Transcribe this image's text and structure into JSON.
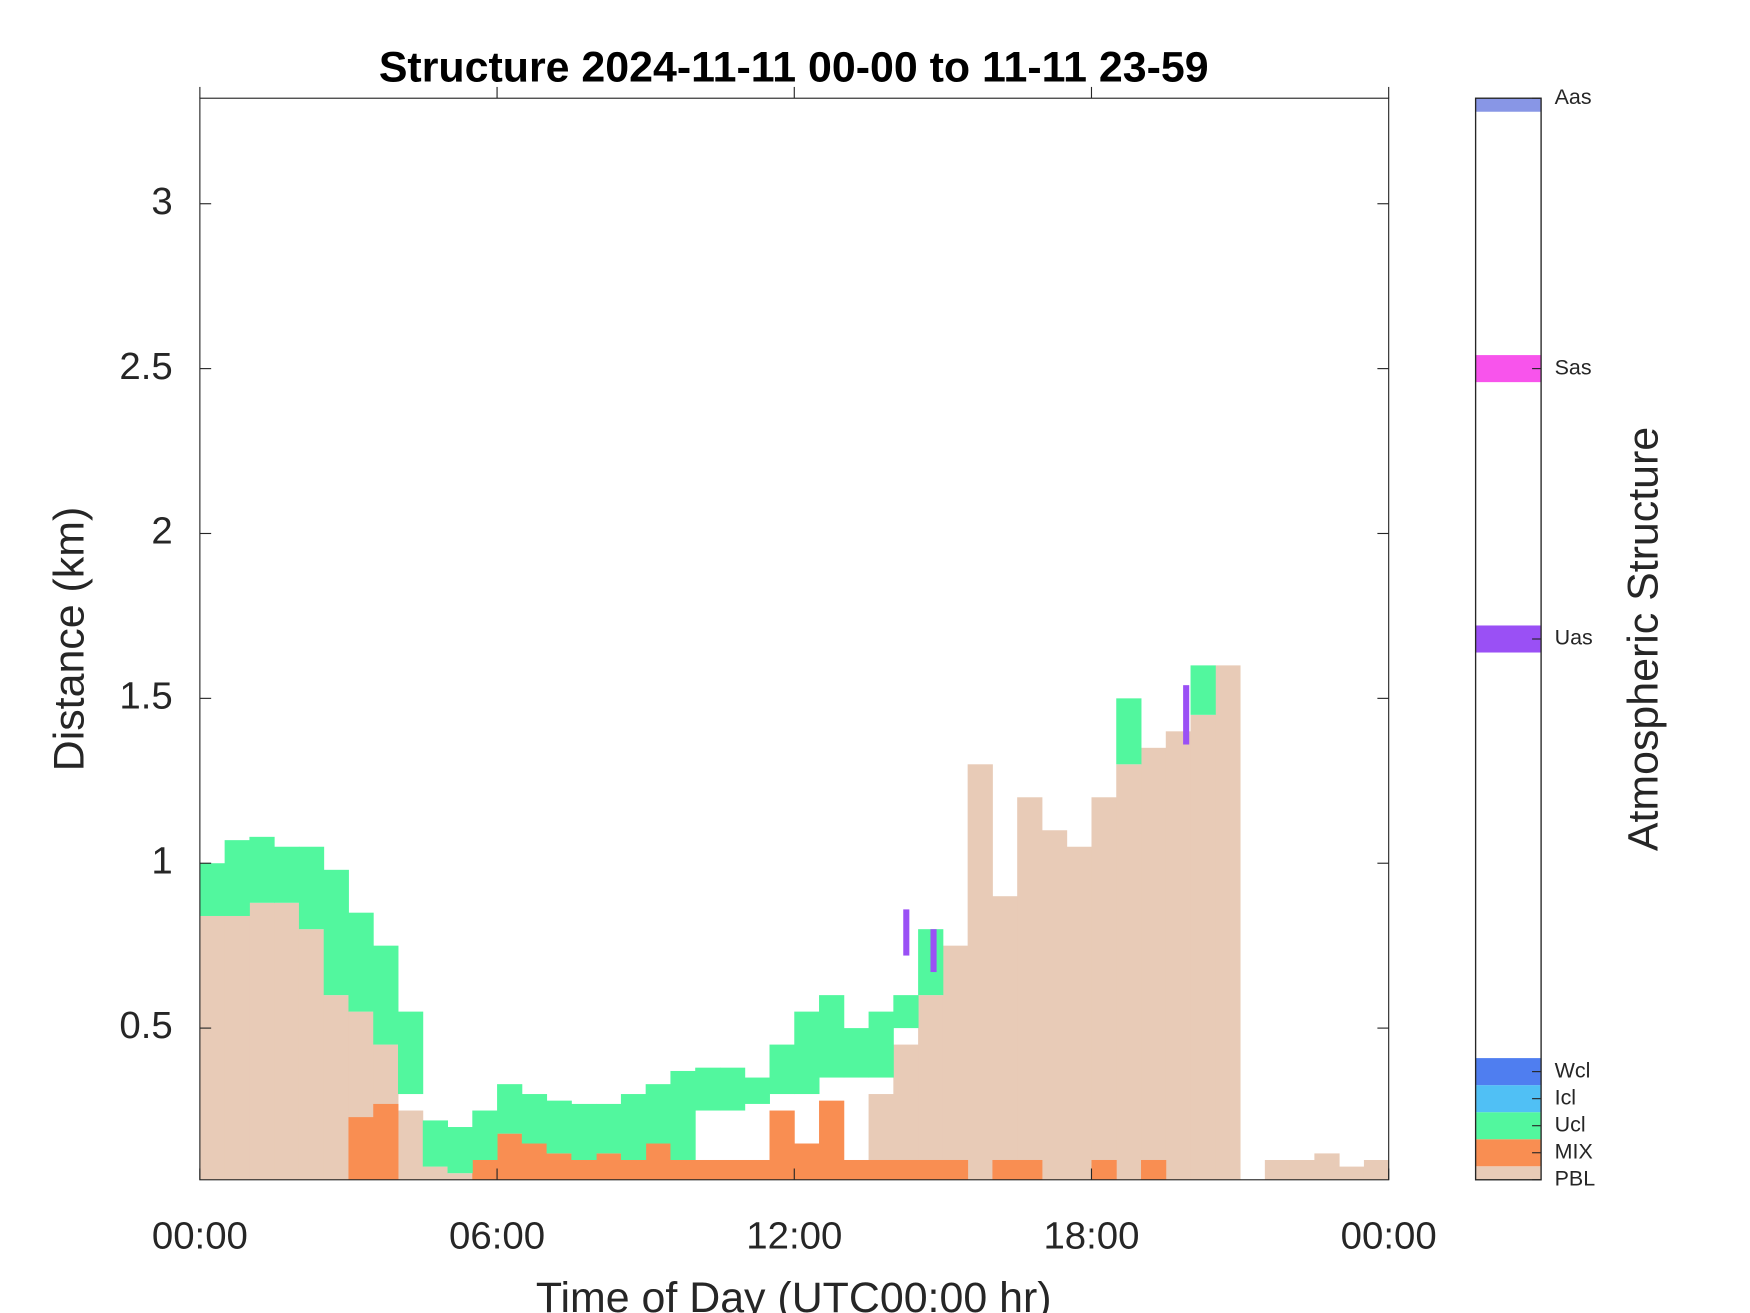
{
  "chart_data": {
    "type": "structure",
    "title": "Structure 2024-11-11 00-00 to 11-11 23-59",
    "xlabel": "Time of Day (UTC00:00 hr)",
    "ylabel": "Distance (km)",
    "xlim": [
      0,
      24
    ],
    "xticks": [
      {
        "value": 0,
        "label": "00:00"
      },
      {
        "value": 6,
        "label": "06:00"
      },
      {
        "value": 12,
        "label": "12:00"
      },
      {
        "value": 18,
        "label": "18:00"
      },
      {
        "value": 24,
        "label": "00:00"
      }
    ],
    "ylim": [
      0.04,
      3.32
    ],
    "yticks": [
      0.5,
      1,
      1.5,
      2,
      2.5,
      3
    ],
    "x": [
      0,
      0.5,
      1,
      1.5,
      2,
      2.5,
      3,
      3.5,
      4,
      4.5,
      5,
      5.5,
      6,
      6.5,
      7,
      7.5,
      8,
      8.5,
      9,
      9.5,
      10,
      10.5,
      11,
      11.5,
      12,
      12.5,
      13,
      13.5,
      14,
      14.5,
      15,
      15.5,
      16,
      16.5,
      17,
      17.5,
      18,
      18.5,
      19,
      19.5,
      20,
      20.5,
      21,
      21.5,
      22,
      22.5,
      23,
      23.5
    ],
    "colorbar": {
      "label": "Atmospheric Structure",
      "clim": [
        0,
        40
      ]
    },
    "series": [
      {
        "name": "PBL",
        "color": "#e8cbb7",
        "level": 0,
        "values": [
          0.84,
          0.84,
          0.88,
          0.88,
          0.8,
          0.6,
          0.55,
          0.45,
          0.25,
          0.08,
          0.06,
          0.07,
          0.08,
          0.08,
          0.08,
          0.08,
          0.08,
          0.08,
          0.08,
          0.08,
          0.08,
          0.08,
          0.08,
          0.08,
          0.08,
          0.08,
          0.08,
          0.3,
          0.45,
          0.6,
          0.75,
          1.3,
          0.9,
          1.2,
          1.1,
          1.05,
          1.2,
          1.3,
          1.35,
          1.4,
          1.45,
          1.6,
          null,
          0.1,
          0.1,
          0.12,
          0.08,
          0.1
        ]
      },
      {
        "name": "MIX",
        "color": "#f98e52",
        "level": 1,
        "values": [
          null,
          null,
          null,
          null,
          null,
          null,
          0.23,
          0.27,
          null,
          null,
          null,
          0.1,
          0.18,
          0.15,
          0.12,
          0.1,
          0.12,
          0.1,
          0.15,
          0.1,
          0.1,
          0.1,
          0.1,
          0.25,
          0.15,
          0.28,
          0.1,
          0.1,
          0.1,
          0.1,
          0.1,
          null,
          0.1,
          0.1,
          null,
          null,
          0.1,
          null,
          0.1,
          null,
          null,
          null,
          null,
          null,
          null,
          null,
          null,
          null
        ]
      },
      {
        "name": "Ucl",
        "color": "#52f79e",
        "level": 2,
        "base": [
          0.84,
          0.84,
          0.88,
          0.88,
          0.8,
          0.6,
          0.55,
          0.45,
          0.3,
          0.08,
          0.06,
          0.1,
          0.18,
          0.15,
          0.12,
          0.1,
          0.12,
          0.1,
          0.15,
          0.1,
          0.25,
          0.25,
          0.27,
          0.3,
          0.3,
          0.35,
          0.35,
          0.35,
          0.5,
          0.6,
          null,
          null,
          null,
          null,
          null,
          null,
          null,
          1.3,
          null,
          null,
          1.45,
          null,
          null,
          null,
          null,
          null,
          null,
          null
        ],
        "values": [
          1.0,
          1.07,
          1.08,
          1.05,
          1.05,
          0.98,
          0.85,
          0.75,
          0.55,
          0.22,
          0.2,
          0.25,
          0.33,
          0.3,
          0.28,
          0.27,
          0.27,
          0.3,
          0.33,
          0.37,
          0.38,
          0.38,
          0.35,
          0.45,
          0.55,
          0.6,
          0.5,
          0.55,
          0.6,
          0.8,
          null,
          null,
          null,
          null,
          null,
          null,
          null,
          1.5,
          null,
          null,
          1.6,
          null,
          null,
          null,
          null,
          null,
          null,
          null
        ]
      },
      {
        "name": "Icl",
        "color": "#50c0f5",
        "level": 3
      },
      {
        "name": "Wcl",
        "color": "#4f7ef0",
        "level": 4
      },
      {
        "name": "Uas",
        "color": "#9a50f5",
        "level": 20,
        "x": [
          14.2,
          14.75,
          19.85
        ],
        "base": [
          0.72,
          0.67,
          1.36
        ],
        "values": [
          0.86,
          0.8,
          1.54
        ]
      },
      {
        "name": "Sas",
        "color": "#f854ec",
        "level": 30
      },
      {
        "name": "Aas",
        "color": "#8896e6",
        "level": 40
      }
    ]
  }
}
